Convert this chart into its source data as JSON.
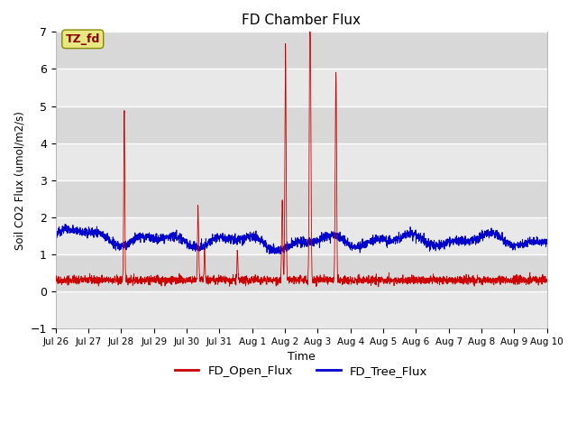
{
  "title": "FD Chamber Flux",
  "xlabel": "Time",
  "ylabel": "Soil CO2 Flux (umol/m2/s)",
  "ylim": [
    -1.0,
    7.0
  ],
  "yticks": [
    -1.0,
    0.0,
    1.0,
    2.0,
    3.0,
    4.0,
    5.0,
    6.0,
    7.0
  ],
  "xtick_labels": [
    "Jul 26",
    "Jul 27",
    "Jul 28",
    "Jul 29",
    "Jul 30",
    "Jul 31",
    "Aug 1",
    "Aug 2",
    "Aug 3",
    "Aug 4",
    "Aug 5",
    "Aug 6",
    "Aug 7",
    "Aug 8",
    "Aug 9",
    "Aug 10"
  ],
  "open_flux_color": "#cc0000",
  "tree_flux_color": "#0000cc",
  "bg_color": "#e8e8e8",
  "bg_band_color": "#d8d8d8",
  "annotation_text": "TZ_fd",
  "annotation_bg": "#e8e880",
  "annotation_text_color": "#880000",
  "legend_labels": [
    "FD_Open_Flux",
    "FD_Tree_Flux"
  ],
  "seed": 42,
  "n_points": 3000,
  "open_base": 0.27,
  "tree_base": 1.38
}
